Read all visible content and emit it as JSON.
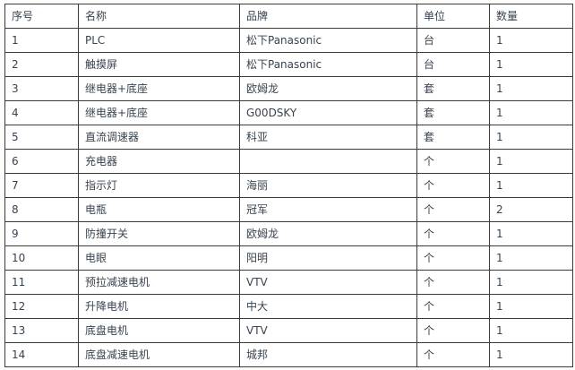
{
  "table": {
    "columns": [
      "序号",
      "名称",
      "品牌",
      "单位",
      "数量"
    ],
    "rows": [
      [
        "1",
        "PLC",
        "松下Panasonic",
        "台",
        "1"
      ],
      [
        "2",
        "触摸屏",
        "松下Panasonic",
        "台",
        "1"
      ],
      [
        "3",
        "继电器+底座",
        "欧姆龙",
        "套",
        "1"
      ],
      [
        "4",
        "继电器+底座",
        "G00DSKY",
        "套",
        "1"
      ],
      [
        "5",
        "直流调速器",
        "科亚",
        "套",
        "1"
      ],
      [
        "6",
        "充电器",
        "",
        "个",
        "1"
      ],
      [
        "7",
        "指示灯",
        "海丽",
        "个",
        "1"
      ],
      [
        "8",
        "电瓶",
        "冠军",
        "个",
        "2"
      ],
      [
        "9",
        "防撞开关",
        "欧姆龙",
        "个",
        "1"
      ],
      [
        "10",
        "电眼",
        "阳明",
        "个",
        "1"
      ],
      [
        "11",
        "预拉减速电机",
        "VTV",
        "个",
        "1"
      ],
      [
        "12",
        "升降电机",
        "中大",
        "个",
        "1"
      ],
      [
        "13",
        "底盘电机",
        "VTV",
        "个",
        "1"
      ],
      [
        "14",
        "底盘减速电机",
        "城邦",
        "个",
        "1"
      ]
    ]
  },
  "colors": {
    "border": "#3a3a3a",
    "text": "#39434f",
    "background": "#ffffff"
  }
}
